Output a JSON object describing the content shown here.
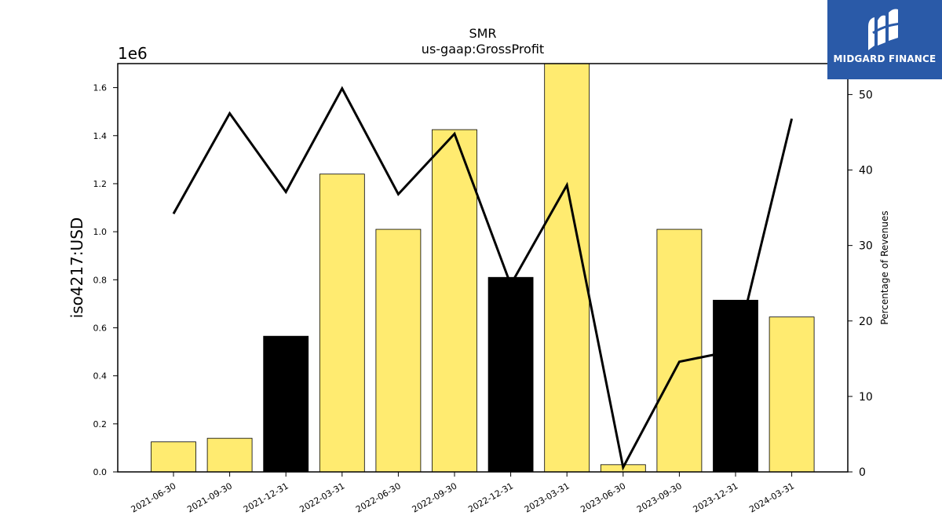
{
  "chart_data": {
    "type": "bar",
    "title": "SMR",
    "subtitle": "us-gaap:GrossProfit",
    "ylabel": "iso4217:USD",
    "ylabel_right": "Percentage of Revenues",
    "y_scale_label": "1e6",
    "ylim": [
      0,
      1.7
    ],
    "ylim_right": [
      0,
      54.1
    ],
    "y_ticks": [
      "0.0",
      "0.2",
      "0.4",
      "0.6",
      "0.8",
      "1.0",
      "1.2",
      "1.4",
      "1.6"
    ],
    "y_right_ticks": [
      "0",
      "10",
      "20",
      "30",
      "40",
      "50"
    ],
    "categories": [
      "2021-06-30",
      "2021-09-30",
      "2021-12-31",
      "2022-03-31",
      "2022-06-30",
      "2022-09-30",
      "2022-12-31",
      "2023-03-31",
      "2023-06-30",
      "2023-09-30",
      "2023-12-31",
      "2024-03-31"
    ],
    "values": [
      0.125,
      0.14,
      0.565,
      1.24,
      1.01,
      1.425,
      0.81,
      1.71,
      0.03,
      1.01,
      0.715,
      0.645
    ],
    "bar_highlight": [
      false,
      false,
      true,
      false,
      false,
      false,
      true,
      false,
      false,
      false,
      true,
      false
    ],
    "line_values": [
      34.2,
      47.5,
      37.1,
      50.8,
      36.8,
      44.8,
      24.8,
      38.0,
      0.6,
      14.6,
      16.1,
      46.8
    ],
    "colors": {
      "bar": "#ffeb70",
      "bar_highlight": "#000000",
      "bar_edge": "#000000",
      "line": "#000000"
    },
    "grid": false
  },
  "logo": {
    "text": "MIDGARD FINANCE",
    "background": "#2a5aa8"
  }
}
